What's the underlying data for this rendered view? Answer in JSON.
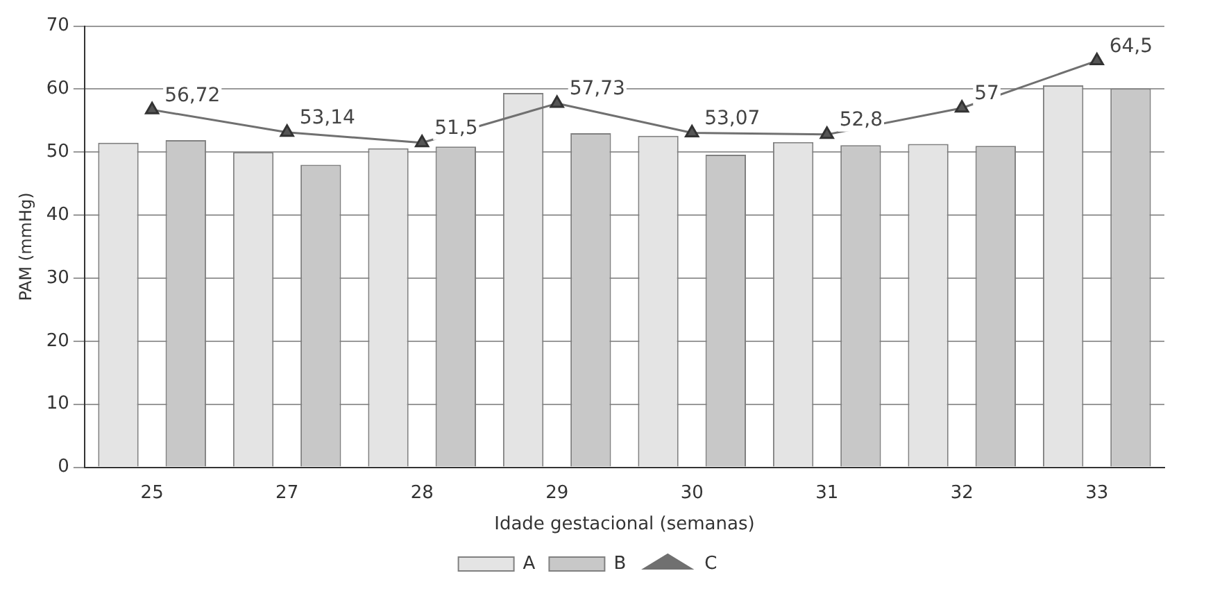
{
  "chart_data": {
    "type": "bar",
    "xlabel": "Idade gestacional (semanas)",
    "ylabel": "PAM (mmHg)",
    "categories": [
      "25",
      "27",
      "28",
      "29",
      "30",
      "31",
      "32",
      "33"
    ],
    "series": [
      {
        "name": "A",
        "color": "#e4e4e4",
        "values": [
          51.5,
          50.0,
          50.6,
          59.4,
          52.6,
          51.6,
          51.3,
          60.6
        ]
      },
      {
        "name": "B",
        "color": "#c8c8c8",
        "values": [
          51.9,
          48.0,
          50.9,
          53.0,
          49.6,
          51.1,
          51.0,
          60.1
        ]
      },
      {
        "name": "C",
        "type": "line",
        "color": "#707070",
        "marker": "triangle",
        "values": [
          56.72,
          53.14,
          51.5,
          57.73,
          53.07,
          52.8,
          57,
          64.5
        ],
        "value_labels": [
          "56,72",
          "53,14",
          "51,5",
          "57,73",
          "53,07",
          "52,8",
          "57",
          "64,5"
        ]
      }
    ],
    "ylim": [
      0,
      70
    ],
    "yticks": [
      0,
      10,
      20,
      30,
      40,
      50,
      60,
      70
    ],
    "grid": "y",
    "legend": "bottom"
  }
}
